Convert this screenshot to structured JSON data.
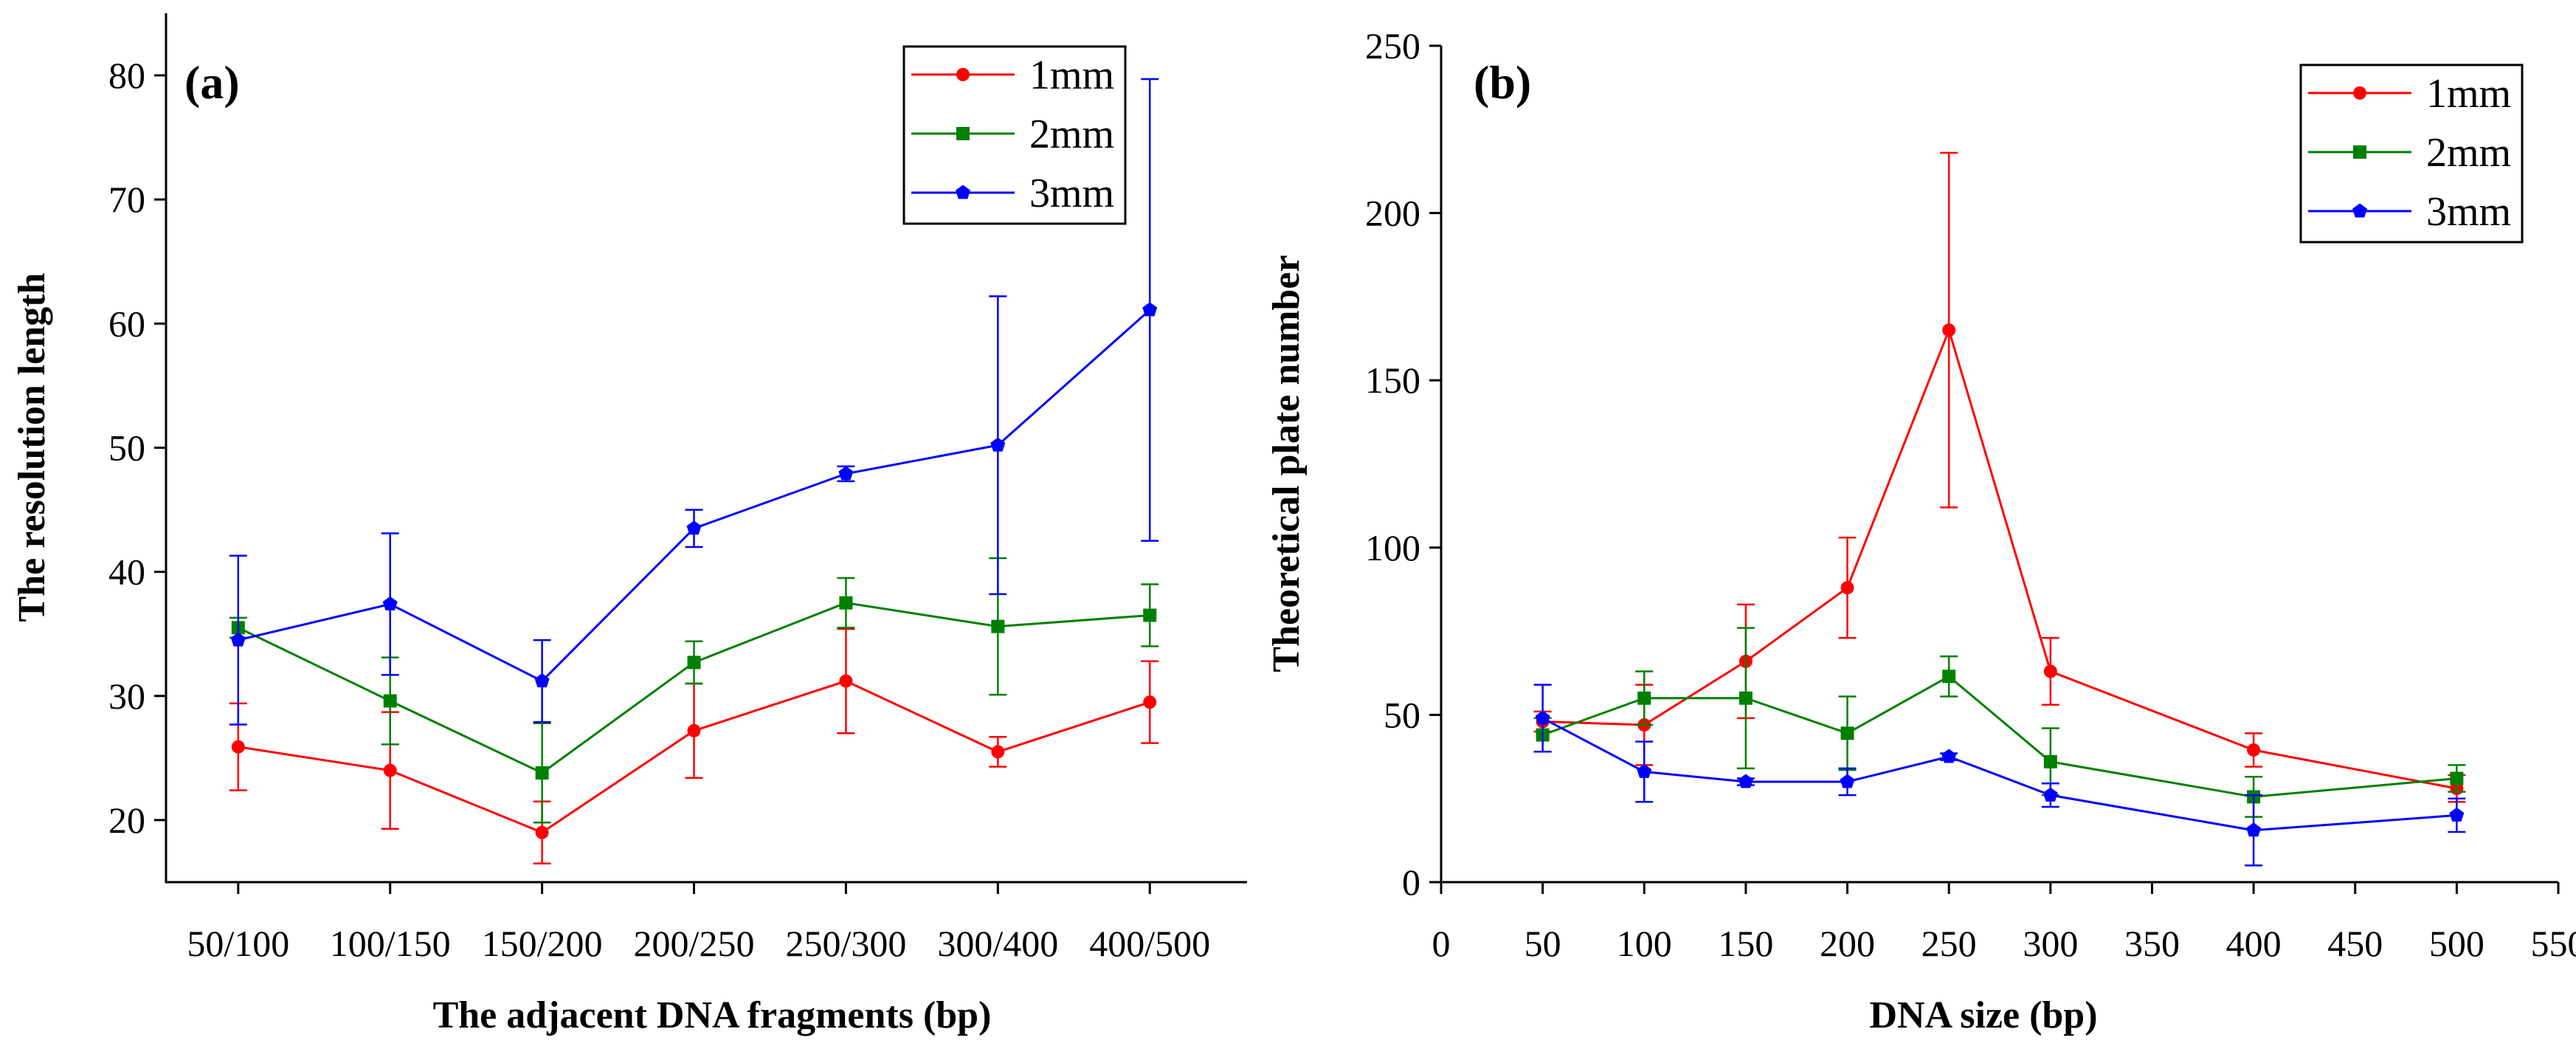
{
  "chart_data": [
    {
      "type": "line",
      "panel_label": "(a)",
      "xlabel": "The adjacent DNA fragments (bp)",
      "ylabel": "The resolution length",
      "x_scale": "categorical",
      "categories": [
        "50/100",
        "100/150",
        "150/200",
        "200/250",
        "250/300",
        "300/400",
        "400/500"
      ],
      "ylim": [
        15,
        85
      ],
      "yticks": [
        20,
        30,
        40,
        50,
        60,
        70,
        80
      ],
      "legend_position": "top-right",
      "series": [
        {
          "name": "1mm",
          "color": "#ff0000",
          "marker": "circle",
          "values": [
            25.9,
            24.0,
            19.0,
            27.2,
            31.2,
            25.5,
            29.5
          ],
          "errors": [
            3.5,
            4.7,
            2.5,
            3.8,
            4.2,
            1.2,
            3.3
          ]
        },
        {
          "name": "2mm",
          "color": "#008000",
          "marker": "square",
          "values": [
            35.5,
            29.6,
            23.8,
            32.7,
            37.5,
            35.6,
            36.5
          ],
          "errors": [
            0.8,
            3.5,
            4.0,
            1.7,
            2.0,
            5.5,
            2.5
          ]
        },
        {
          "name": "3mm",
          "color": "#0000ff",
          "marker": "pentagon",
          "values": [
            34.5,
            37.4,
            31.2,
            43.5,
            47.9,
            50.2,
            61.1
          ],
          "errors": [
            6.8,
            5.7,
            3.3,
            1.5,
            0.6,
            12.0,
            18.6
          ]
        }
      ]
    },
    {
      "type": "line",
      "panel_label": "(b)",
      "xlabel": "DNA size (bp)",
      "ylabel": "Theoretical plate number",
      "xlim": [
        0,
        550
      ],
      "xticks": [
        0,
        50,
        100,
        150,
        200,
        250,
        300,
        350,
        400,
        450,
        500,
        550
      ],
      "ylim": [
        0,
        250
      ],
      "yticks": [
        0,
        50,
        100,
        150,
        200,
        250
      ],
      "legend_position": "top-right",
      "x": [
        50,
        100,
        150,
        200,
        250,
        300,
        400,
        500
      ],
      "series": [
        {
          "name": "1mm",
          "color": "#ff0000",
          "marker": "circle",
          "values": [
            48,
            47,
            66,
            88,
            165,
            63,
            39.5,
            28
          ],
          "errors": [
            3,
            12,
            17,
            15,
            53,
            10,
            5,
            4
          ]
        },
        {
          "name": "2mm",
          "color": "#008000",
          "marker": "square",
          "values": [
            44,
            55,
            55,
            44.5,
            61.5,
            36,
            25.5,
            31
          ],
          "errors": [
            5,
            8,
            21,
            11,
            6,
            10,
            6,
            4
          ]
        },
        {
          "name": "3mm",
          "color": "#0000ff",
          "marker": "pentagon",
          "values": [
            49,
            33,
            30,
            30,
            37.5,
            26,
            15.5,
            20
          ],
          "errors": [
            10,
            9,
            1,
            4,
            1,
            3.5,
            10.5,
            5
          ]
        }
      ]
    }
  ]
}
